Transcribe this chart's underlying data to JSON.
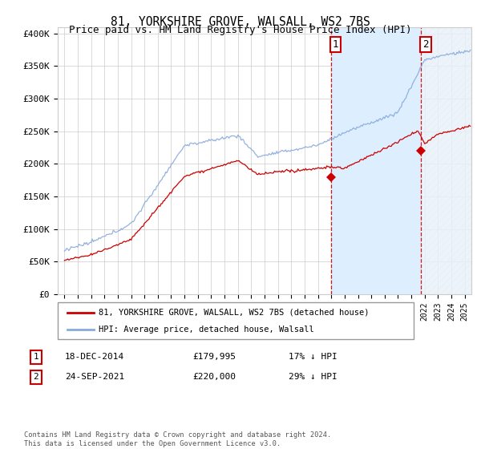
{
  "title": "81, YORKSHIRE GROVE, WALSALL, WS2 7BS",
  "subtitle": "Price paid vs. HM Land Registry's House Price Index (HPI)",
  "background_color": "#ffffff",
  "plot_bg_color": "#ffffff",
  "grid_color": "#cccccc",
  "hpi_shade_color": "#ddeeff",
  "sale1_date_x": 2014.96,
  "sale2_date_x": 2021.73,
  "sale1_price": 179995,
  "sale2_price": 220000,
  "marker_color": "#cc0000",
  "hpi_line_color": "#88aadd",
  "price_line_color": "#cc0000",
  "ylim_min": 0,
  "ylim_max": 410000,
  "yticks": [
    0,
    50000,
    100000,
    150000,
    200000,
    250000,
    300000,
    350000,
    400000
  ],
  "ytick_labels": [
    "£0",
    "£50K",
    "£100K",
    "£150K",
    "£200K",
    "£250K",
    "£300K",
    "£350K",
    "£400K"
  ],
  "legend_label_red": "81, YORKSHIRE GROVE, WALSALL, WS2 7BS (detached house)",
  "legend_label_blue": "HPI: Average price, detached house, Walsall",
  "table_row1": [
    "1",
    "18-DEC-2014",
    "£179,995",
    "17% ↓ HPI"
  ],
  "table_row2": [
    "2",
    "24-SEP-2021",
    "£220,000",
    "29% ↓ HPI"
  ],
  "footer": "Contains HM Land Registry data © Crown copyright and database right 2024.\nThis data is licensed under the Open Government Licence v3.0.",
  "xlim_min": 1994.5,
  "xlim_max": 2025.5
}
